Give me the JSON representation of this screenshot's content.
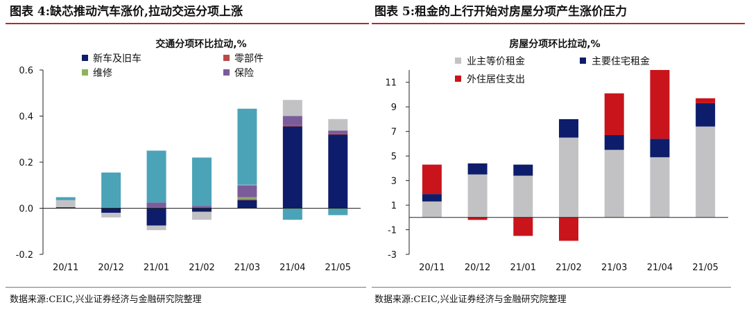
{
  "left_panel": {
    "title": "图表 4:缺芯推动汽车涨价,拉动交运分项上涨",
    "source": "数据来源:CEIC,兴业证券经济与金融研究院整理"
  },
  "right_panel": {
    "title": "图表 5:租金的上行开始对房屋分项产生涨价压力",
    "source": "数据来源:CEIC,兴业证券经济与金融研究院整理"
  },
  "chart_data": [
    {
      "type": "bar",
      "stacked": true,
      "title": "交通分项环比拉动,%",
      "xlabel": "",
      "ylabel": "",
      "categories": [
        "20/11",
        "20/12",
        "21/01",
        "21/02",
        "21/03",
        "21/04",
        "21/05"
      ],
      "ylim": [
        -0.2,
        0.6
      ],
      "yticks": [
        -0.2,
        0.0,
        0.2,
        0.4,
        0.6
      ],
      "ytick_labels": [
        "-0.2",
        "0.0",
        "0.2",
        "0.4",
        "0.6"
      ],
      "grid": false,
      "legend_position": "top-left",
      "legend_columns": 2,
      "series": [
        {
          "name": "新车及旧车",
          "color": "#0d1d6b",
          "values": [
            0.003,
            -0.02,
            -0.075,
            -0.015,
            0.035,
            0.355,
            0.32
          ]
        },
        {
          "name": "零部件",
          "color": "#b94a4a",
          "values": [
            0.0,
            0.0,
            0.0,
            0.0,
            0.005,
            0.005,
            0.005
          ]
        },
        {
          "name": "维修",
          "color": "#8fb35a",
          "values": [
            0.0,
            0.0,
            0.0,
            0.0,
            0.008,
            0.0,
            0.0
          ]
        },
        {
          "name": "保险",
          "color": "#7b5c9a",
          "values": [
            0.002,
            0.0,
            0.025,
            0.01,
            0.052,
            0.04,
            0.012
          ]
        },
        {
          "name": "",
          "color": "#c2c2c4",
          "values": [
            0.03,
            -0.02,
            -0.02,
            -0.035,
            0.002,
            0.07,
            0.05
          ]
        },
        {
          "name": "",
          "color": "#4ba3b8",
          "values": [
            0.013,
            0.155,
            0.225,
            0.21,
            0.33,
            -0.05,
            -0.03
          ]
        }
      ]
    },
    {
      "type": "bar",
      "stacked": true,
      "title": "房屋分项环比拉动,%",
      "xlabel": "",
      "ylabel": "",
      "categories": [
        "20/11",
        "20/12",
        "21/01",
        "21/02",
        "21/03",
        "21/04",
        "21/05"
      ],
      "ylim": [
        -3,
        12
      ],
      "yticks": [
        -3,
        -1,
        1,
        3,
        5,
        7,
        9,
        11
      ],
      "ytick_labels": [
        "-3",
        "-1",
        "1",
        "3",
        "5",
        "7",
        "9",
        "11"
      ],
      "grid": false,
      "legend_position": "top-left",
      "legend_columns": 2,
      "series": [
        {
          "name": "业主等价租金",
          "color": "#c2c2c4",
          "values": [
            1.3,
            3.5,
            3.4,
            6.5,
            5.5,
            4.9,
            7.4
          ]
        },
        {
          "name": "主要住宅租金",
          "color": "#0d1d6b",
          "values": [
            0.6,
            0.9,
            0.9,
            1.5,
            1.2,
            1.5,
            1.9
          ]
        },
        {
          "name": "外住居住支出",
          "color": "#c9141b",
          "values": [
            2.4,
            -0.2,
            -1.5,
            -1.9,
            3.4,
            5.6,
            0.4
          ]
        }
      ]
    }
  ]
}
